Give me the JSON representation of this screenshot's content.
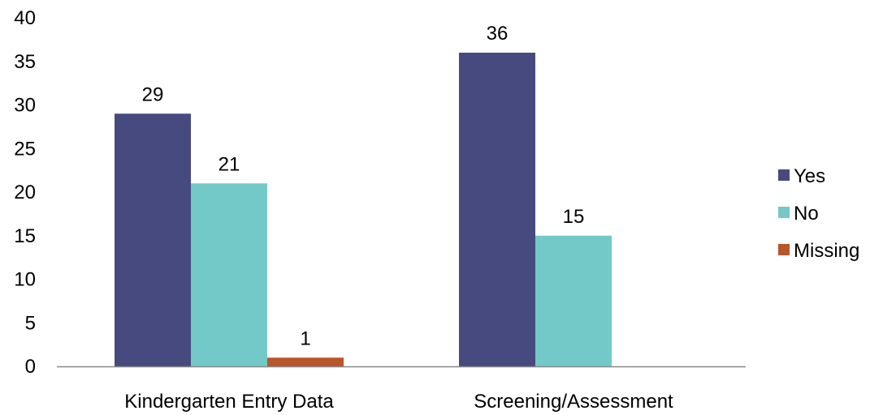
{
  "chart_data": {
    "type": "bar",
    "categories": [
      "Kindergarten Entry Data",
      "Screening/Assessment"
    ],
    "series": [
      {
        "name": "Yes",
        "values": [
          29,
          36
        ],
        "color": "#464A7E"
      },
      {
        "name": "No",
        "values": [
          21,
          15
        ],
        "color": "#72C9C8"
      },
      {
        "name": "Missing",
        "values": [
          1,
          null
        ],
        "color": "#B8552B"
      }
    ],
    "ylim": [
      0,
      40
    ],
    "yticks": [
      0,
      5,
      10,
      15,
      20,
      25,
      30,
      35,
      40
    ],
    "ytick_labels": [
      "0",
      "5",
      "10",
      "15",
      "20",
      "25",
      "30",
      "35",
      "40"
    ],
    "data_labels": true,
    "grid": false,
    "legend_position": "right"
  }
}
